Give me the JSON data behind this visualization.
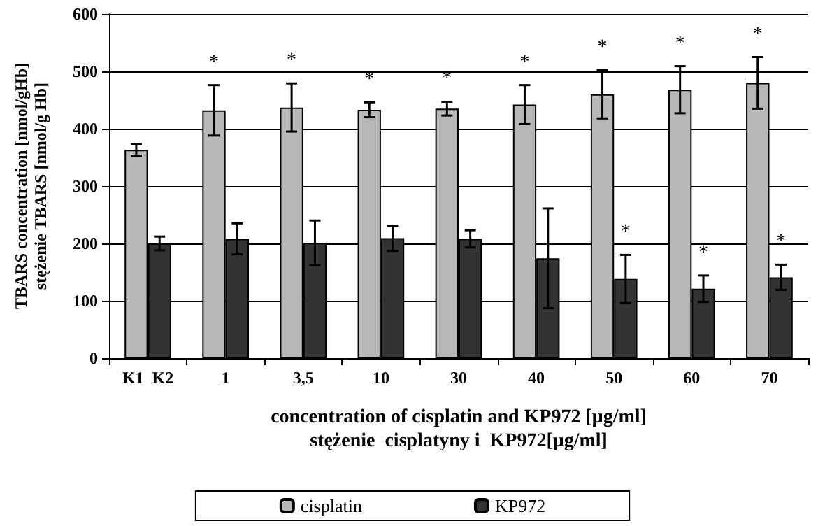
{
  "chart_data": {
    "type": "bar",
    "xlabel": "concentration of cisplatin and KP972 [μg/ml]\nstężenie  cisplatyny i  KP972[μg/ml]",
    "ylabel": "TBARS concentration [nmol/gHb]\nstężenie TBARS [nmol/g Hb]",
    "categories": [
      "K1  K2",
      "1",
      "3,5",
      "10",
      "30",
      "40",
      "50",
      "60",
      "70"
    ],
    "series": [
      {
        "name": "cisplatin",
        "color": "#b8b8b8",
        "values": [
          363,
          432,
          437,
          433,
          435,
          442,
          460,
          468,
          480
        ],
        "errors": [
          10,
          44,
          42,
          13,
          12,
          34,
          42,
          41,
          45
        ]
      },
      {
        "name": "KP972",
        "color": "#333333",
        "values": [
          200,
          208,
          201,
          209,
          208,
          174,
          138,
          121,
          141
        ],
        "errors": [
          12,
          27,
          39,
          22,
          15,
          87,
          42,
          23,
          22
        ]
      }
    ],
    "ylim": [
      0,
      600
    ],
    "yticks": [
      0,
      100,
      200,
      300,
      400,
      500,
      600
    ],
    "grid": "y",
    "legend": "bottom",
    "annotations": [
      {
        "text": "*",
        "x": "1",
        "y": 432
      },
      {
        "text": "*",
        "x": "3,5",
        "y": 437
      },
      {
        "text": "*",
        "x": "10",
        "y": 433
      },
      {
        "text": "*",
        "x": "30",
        "y": 435
      },
      {
        "text": "*",
        "x": "40",
        "y": 442
      },
      {
        "text": "*",
        "x": "50",
        "y": 460
      },
      {
        "text": "*",
        "x": "60",
        "y": 468
      },
      {
        "text": "*",
        "x": "70",
        "y": 480
      },
      {
        "text": "*",
        "x": "50",
        "y": 138
      },
      {
        "text": "*",
        "x": "60",
        "y": 121
      },
      {
        "text": "*",
        "x": "70",
        "y": 141
      }
    ]
  }
}
